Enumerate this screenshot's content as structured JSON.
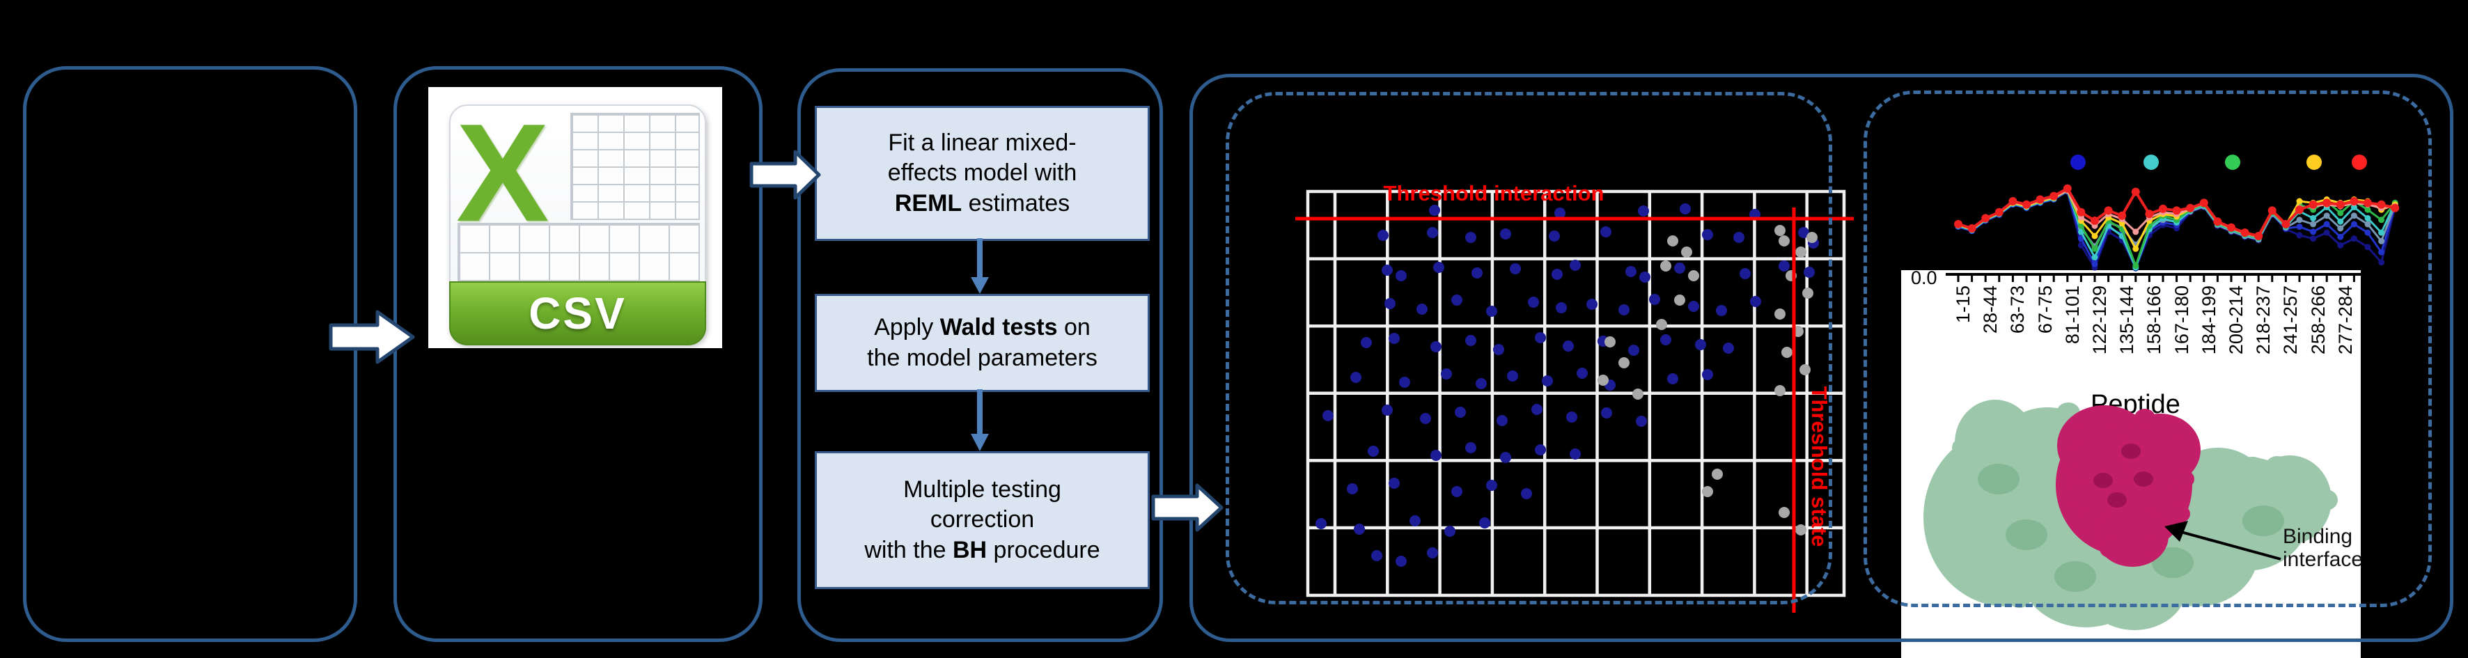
{
  "colors": {
    "panel_border": "#2e5c8e",
    "dashed_border": "#3c6ba0",
    "box_fill": "#dbe5f1",
    "box_border": "#37598c",
    "block_arrow_fill": "#ffffff",
    "block_arrow_stroke": "#24466e",
    "flow_arrow": "#4f81bd",
    "grid_line": "#f0f0f0",
    "threshold_red": "#ff0000",
    "dot_blue": "#1c1c96",
    "dot_gray": "#a8a8a8",
    "csv_green": "#6db32f",
    "protein_green": "#9cc7ab",
    "protein_magenta": "#c31e68"
  },
  "csv_icon": {
    "letter": "X",
    "label": "CSV"
  },
  "workflow": {
    "steps": [
      {
        "pre": "Fit a linear mixed-effects model with ",
        "bold": "REML",
        "post": " estimates"
      },
      {
        "pre": "Apply ",
        "bold": "Wald tests",
        "post": " on the model parameters"
      },
      {
        "line1": "Multiple testing correction",
        "pre": "with the ",
        "bold": "BH",
        "post": " procedure"
      }
    ]
  },
  "scatter": {
    "title": "Threshold interaction",
    "side_label": "Threshold state",
    "blue_points": [
      [
        2060,
        302
      ],
      [
        2240,
        306
      ],
      [
        2420,
        300
      ],
      [
        2520,
        308
      ],
      [
        2360,
        303
      ],
      [
        1986,
        338
      ],
      [
        2057,
        334
      ],
      [
        2112,
        341
      ],
      [
        2162,
        336
      ],
      [
        2232,
        339
      ],
      [
        2306,
        333
      ],
      [
        2452,
        337
      ],
      [
        2497,
        341
      ],
      [
        2590,
        334
      ],
      [
        2604,
        349
      ],
      [
        1992,
        388
      ],
      [
        2012,
        396
      ],
      [
        2066,
        384
      ],
      [
        2121,
        392
      ],
      [
        2176,
        386
      ],
      [
        2236,
        394
      ],
      [
        2262,
        381
      ],
      [
        2342,
        390
      ],
      [
        2362,
        398
      ],
      [
        2412,
        385
      ],
      [
        2506,
        393
      ],
      [
        2562,
        382
      ],
      [
        2598,
        391
      ],
      [
        1996,
        436
      ],
      [
        2042,
        444
      ],
      [
        2092,
        431
      ],
      [
        2142,
        447
      ],
      [
        2202,
        434
      ],
      [
        2242,
        442
      ],
      [
        2286,
        437
      ],
      [
        2332,
        445
      ],
      [
        2376,
        430
      ],
      [
        2432,
        440
      ],
      [
        2472,
        446
      ],
      [
        2521,
        433
      ],
      [
        1962,
        492
      ],
      [
        2002,
        486
      ],
      [
        2062,
        498
      ],
      [
        2112,
        489
      ],
      [
        2152,
        502
      ],
      [
        2212,
        485
      ],
      [
        2252,
        497
      ],
      [
        2302,
        490
      ],
      [
        2346,
        503
      ],
      [
        2392,
        488
      ],
      [
        2442,
        495
      ],
      [
        2482,
        500
      ],
      [
        1947,
        542
      ],
      [
        2017,
        549
      ],
      [
        2077,
        537
      ],
      [
        2127,
        551
      ],
      [
        2172,
        540
      ],
      [
        2222,
        547
      ],
      [
        2272,
        536
      ],
      [
        2312,
        553
      ],
      [
        2402,
        544
      ],
      [
        2452,
        538
      ],
      [
        1907,
        597
      ],
      [
        1992,
        589
      ],
      [
        2047,
        601
      ],
      [
        2097,
        592
      ],
      [
        2157,
        604
      ],
      [
        2207,
        588
      ],
      [
        2257,
        599
      ],
      [
        2307,
        593
      ],
      [
        2357,
        605
      ],
      [
        1972,
        648
      ],
      [
        2062,
        654
      ],
      [
        2112,
        643
      ],
      [
        2162,
        657
      ],
      [
        2212,
        646
      ],
      [
        2262,
        652
      ],
      [
        1942,
        702
      ],
      [
        2002,
        694
      ],
      [
        2092,
        706
      ],
      [
        2142,
        697
      ],
      [
        2192,
        709
      ],
      [
        1897,
        752
      ],
      [
        1952,
        760
      ],
      [
        2032,
        748
      ],
      [
        2082,
        763
      ],
      [
        2132,
        751
      ],
      [
        1977,
        798
      ],
      [
        2012,
        806
      ],
      [
        2057,
        794
      ]
    ],
    "gray_points": [
      [
        2402,
        346
      ],
      [
        2422,
        362
      ],
      [
        2392,
        382
      ],
      [
        2432,
        396
      ],
      [
        2412,
        431
      ],
      [
        2386,
        466
      ],
      [
        2312,
        491
      ],
      [
        2332,
        521
      ],
      [
        2302,
        546
      ],
      [
        2352,
        566
      ],
      [
        2562,
        346
      ],
      [
        2586,
        362
      ],
      [
        2572,
        396
      ],
      [
        2596,
        421
      ],
      [
        2556,
        451
      ],
      [
        2582,
        476
      ],
      [
        2566,
        506
      ],
      [
        2592,
        531
      ],
      [
        2556,
        561
      ],
      [
        2466,
        681
      ],
      [
        2452,
        706
      ],
      [
        2562,
        736
      ],
      [
        2586,
        761
      ],
      [
        2556,
        331
      ],
      [
        2602,
        341
      ]
    ]
  },
  "line_chart": {
    "ytick": "0.0",
    "legend_colors": [
      "#1515cc",
      "#45cccc",
      "#33cc55",
      "#ffcc22",
      "#ff2222"
    ],
    "series": [
      {
        "name": "navy",
        "color": "#141487",
        "values": [
          0.52,
          0.47,
          0.59,
          0.66,
          0.78,
          0.74,
          0.8,
          0.84,
          0.93,
          0.3,
          0.04,
          0.46,
          0.36,
          0.03,
          0.42,
          0.54,
          0.5,
          0.69,
          0.75,
          0.53,
          0.46,
          0.4,
          0.36,
          0.66,
          0.49,
          0.42,
          0.38,
          0.45,
          0.3,
          0.38,
          0.28,
          0.1,
          0.75
        ]
      },
      {
        "name": "blue",
        "color": "#2233cc",
        "values": [
          0.52,
          0.47,
          0.59,
          0.66,
          0.78,
          0.74,
          0.8,
          0.84,
          0.94,
          0.38,
          0.08,
          0.51,
          0.43,
          0.05,
          0.47,
          0.57,
          0.54,
          0.7,
          0.76,
          0.54,
          0.47,
          0.41,
          0.37,
          0.67,
          0.5,
          0.52,
          0.46,
          0.55,
          0.4,
          0.55,
          0.45,
          0.22,
          0.77
        ]
      },
      {
        "name": "steel",
        "color": "#7796b4",
        "values": [
          0.53,
          0.48,
          0.6,
          0.67,
          0.79,
          0.75,
          0.81,
          0.85,
          0.94,
          0.5,
          0.29,
          0.57,
          0.51,
          0.31,
          0.53,
          0.6,
          0.58,
          0.7,
          0.76,
          0.54,
          0.47,
          0.41,
          0.37,
          0.67,
          0.51,
          0.6,
          0.55,
          0.65,
          0.5,
          0.65,
          0.55,
          0.35,
          0.78
        ]
      },
      {
        "name": "cyan",
        "color": "#3cc8c8",
        "values": [
          0.53,
          0.48,
          0.6,
          0.67,
          0.79,
          0.75,
          0.81,
          0.85,
          0.96,
          0.46,
          0.16,
          0.53,
          0.41,
          0.04,
          0.49,
          0.62,
          0.57,
          0.71,
          0.77,
          0.55,
          0.48,
          0.42,
          0.38,
          0.68,
          0.52,
          0.7,
          0.62,
          0.75,
          0.58,
          0.75,
          0.62,
          0.45,
          0.8
        ]
      },
      {
        "name": "green",
        "color": "#2eb84a",
        "values": [
          0.54,
          0.49,
          0.61,
          0.68,
          0.8,
          0.76,
          0.82,
          0.86,
          0.95,
          0.53,
          0.26,
          0.59,
          0.49,
          0.06,
          0.53,
          0.65,
          0.6,
          0.72,
          0.78,
          0.56,
          0.49,
          0.43,
          0.39,
          0.69,
          0.53,
          0.78,
          0.72,
          0.82,
          0.68,
          0.82,
          0.72,
          0.6,
          0.8
        ]
      },
      {
        "name": "yellow",
        "color": "#ffd21e",
        "values": [
          0.54,
          0.49,
          0.61,
          0.68,
          0.8,
          0.76,
          0.82,
          0.86,
          0.95,
          0.59,
          0.41,
          0.63,
          0.56,
          0.26,
          0.59,
          0.67,
          0.64,
          0.73,
          0.79,
          0.57,
          0.5,
          0.44,
          0.4,
          0.7,
          0.54,
          0.82,
          0.8,
          0.84,
          0.8,
          0.84,
          0.82,
          0.72,
          0.78
        ]
      },
      {
        "name": "salmon",
        "color": "#f49a9a",
        "values": [
          0.55,
          0.5,
          0.62,
          0.69,
          0.81,
          0.77,
          0.83,
          0.87,
          0.95,
          0.63,
          0.53,
          0.67,
          0.61,
          0.46,
          0.63,
          0.69,
          0.67,
          0.73,
          0.79,
          0.57,
          0.5,
          0.44,
          0.4,
          0.7,
          0.54,
          0.74,
          0.76,
          0.78,
          0.76,
          0.8,
          0.78,
          0.74,
          0.76
        ]
      },
      {
        "name": "red",
        "color": "#ee2020",
        "values": [
          0.55,
          0.5,
          0.62,
          0.69,
          0.82,
          0.78,
          0.84,
          0.88,
          0.97,
          0.69,
          0.59,
          0.71,
          0.65,
          0.93,
          0.67,
          0.73,
          0.71,
          0.74,
          0.8,
          0.58,
          0.51,
          0.45,
          0.41,
          0.71,
          0.55,
          0.72,
          0.78,
          0.8,
          0.78,
          0.82,
          0.8,
          0.78,
          0.74
        ]
      }
    ]
  },
  "peptide_axis": {
    "labels": [
      "1-15",
      "28-44",
      "63-73",
      "67-75",
      "81-101",
      "122-129",
      "135-144",
      "158-166",
      "167-180",
      "184-199",
      "200-214",
      "218-237",
      "241-257",
      "258-266",
      "277-284"
    ],
    "xlabel": "Peptide"
  },
  "protein": {
    "caption_line1": "Binding",
    "caption_line2": "interface"
  }
}
